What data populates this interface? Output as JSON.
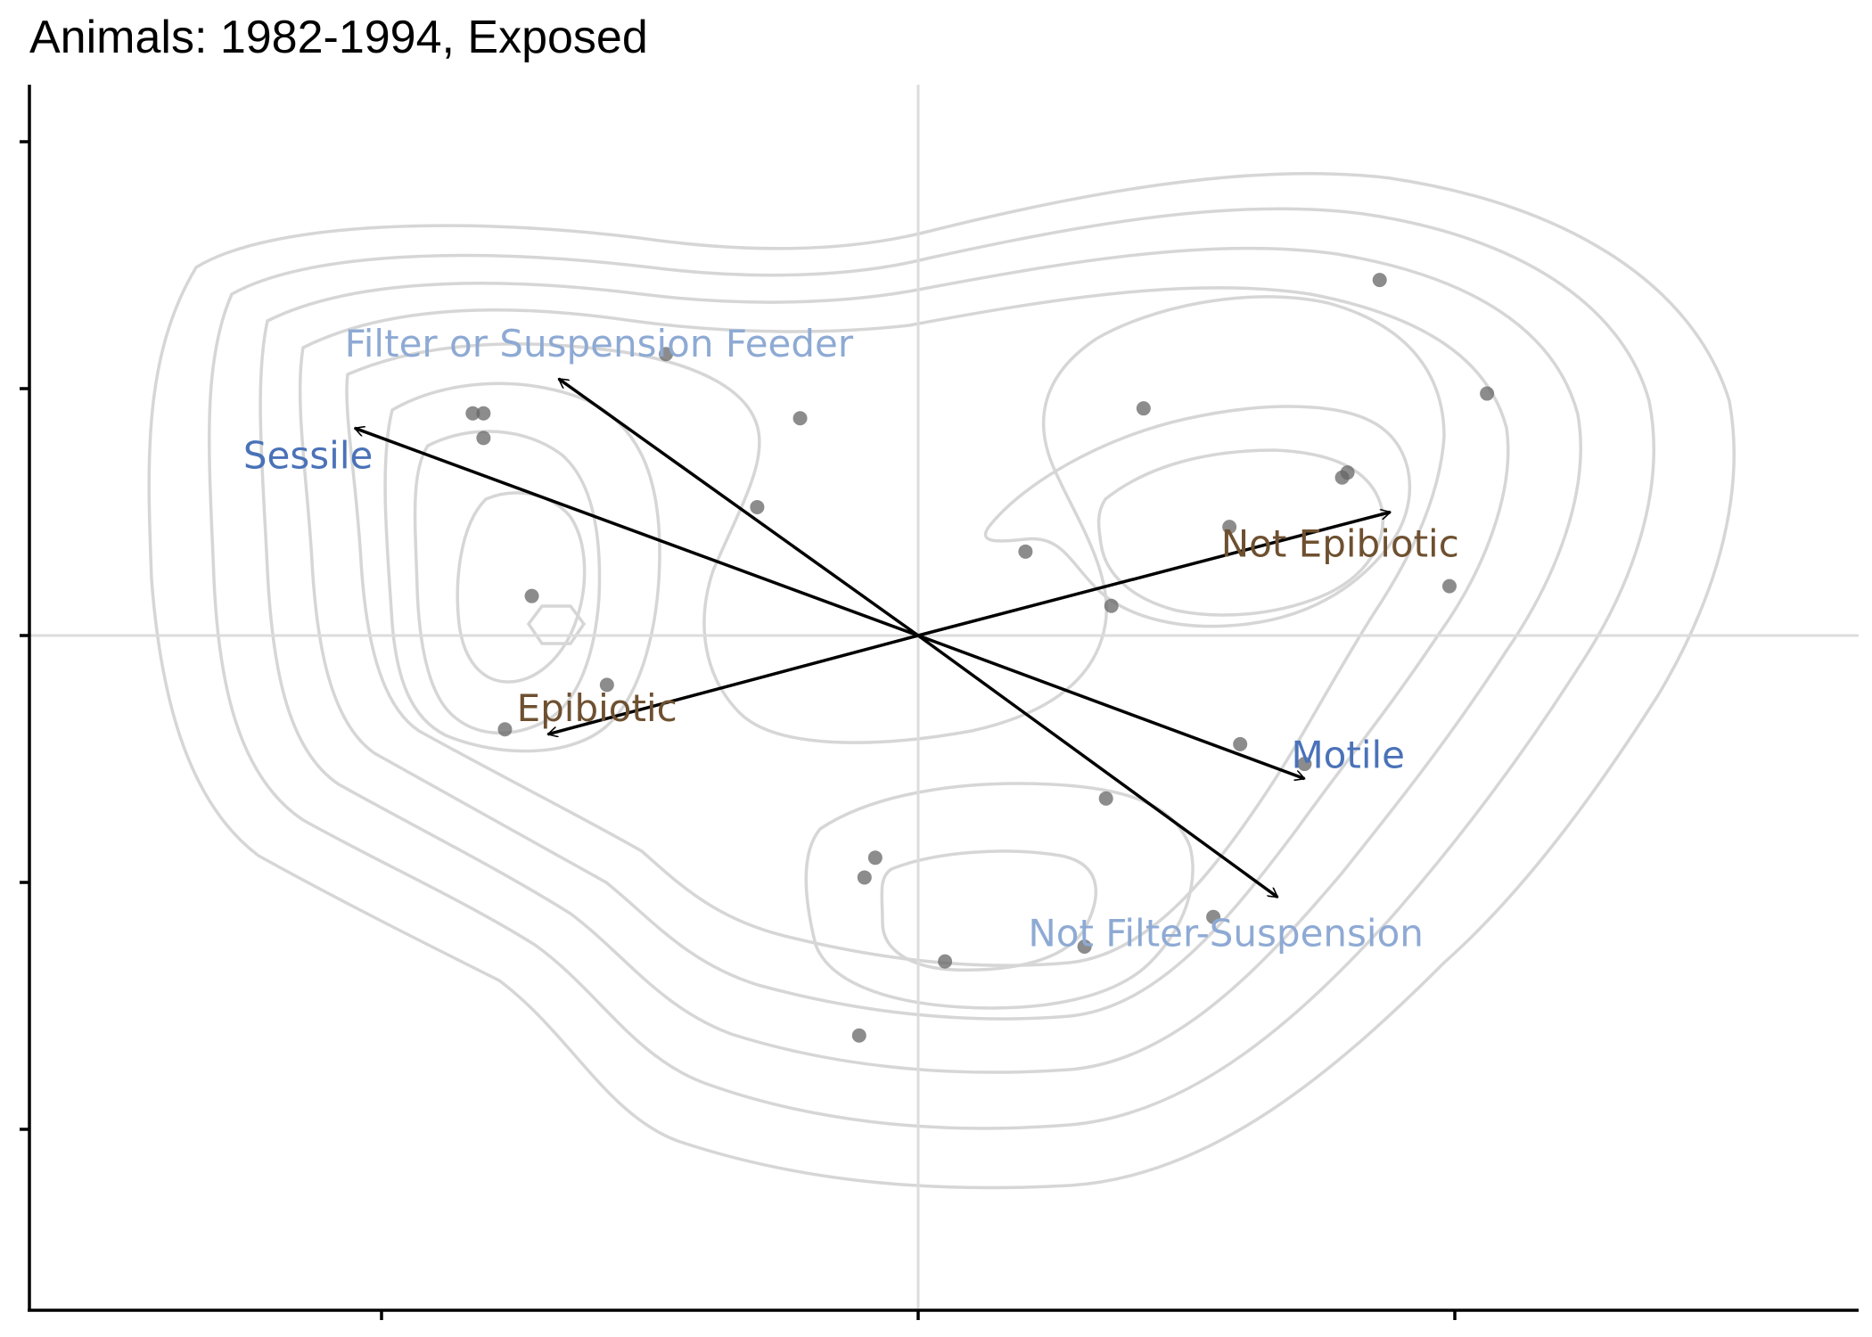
{
  "chart_data": {
    "type": "scatter",
    "title": "Animals: 1982-1994, Exposed",
    "xlabel": "",
    "ylabel": "",
    "xlim": [
      -1.65,
      1.75
    ],
    "ylim": [
      -1.35,
      1.2
    ],
    "grid": false,
    "points": [
      {
        "x": -0.83,
        "y": 0.45
      },
      {
        "x": -0.81,
        "y": 0.45
      },
      {
        "x": -0.81,
        "y": 0.4
      },
      {
        "x": -0.47,
        "y": 0.57
      },
      {
        "x": -0.22,
        "y": 0.44
      },
      {
        "x": -0.3,
        "y": 0.26
      },
      {
        "x": -0.72,
        "y": 0.08
      },
      {
        "x": -0.58,
        "y": -0.1
      },
      {
        "x": -0.77,
        "y": -0.19
      },
      {
        "x": 0.2,
        "y": 0.17
      },
      {
        "x": 0.36,
        "y": 0.06
      },
      {
        "x": 0.42,
        "y": 0.46
      },
      {
        "x": 0.58,
        "y": 0.22
      },
      {
        "x": 0.79,
        "y": 0.32
      },
      {
        "x": 0.8,
        "y": 0.33
      },
      {
        "x": 0.86,
        "y": 0.72
      },
      {
        "x": 1.06,
        "y": 0.49
      },
      {
        "x": 0.99,
        "y": 0.1
      },
      {
        "x": 0.6,
        "y": -0.22
      },
      {
        "x": 0.72,
        "y": -0.26
      },
      {
        "x": 0.35,
        "y": -0.33
      },
      {
        "x": -0.08,
        "y": -0.45
      },
      {
        "x": -0.1,
        "y": -0.49
      },
      {
        "x": 0.05,
        "y": -0.66
      },
      {
        "x": 0.31,
        "y": -0.63
      },
      {
        "x": 0.55,
        "y": -0.57
      },
      {
        "x": -0.11,
        "y": -0.81
      }
    ],
    "vectors": [
      {
        "label": "Sessile",
        "x": -1.05,
        "y": 0.42,
        "color": "#4a72b8"
      },
      {
        "label": "Motile",
        "x": 0.72,
        "y": -0.29,
        "color": "#4a72b8"
      },
      {
        "label": "Filter or Suspension Feeder",
        "x": -0.67,
        "y": 0.52,
        "color": "#8eaad4"
      },
      {
        "label": "Not Filter-Suspension",
        "x": 0.67,
        "y": -0.53,
        "color": "#8eaad4"
      },
      {
        "label": "Not Epibiotic",
        "x": 0.88,
        "y": 0.25,
        "color": "#6e5030"
      },
      {
        "label": "Epibiotic",
        "x": -0.69,
        "y": -0.2,
        "color": "#6e5030"
      }
    ],
    "reference_lines": {
      "x": 0,
      "y": 0
    }
  }
}
